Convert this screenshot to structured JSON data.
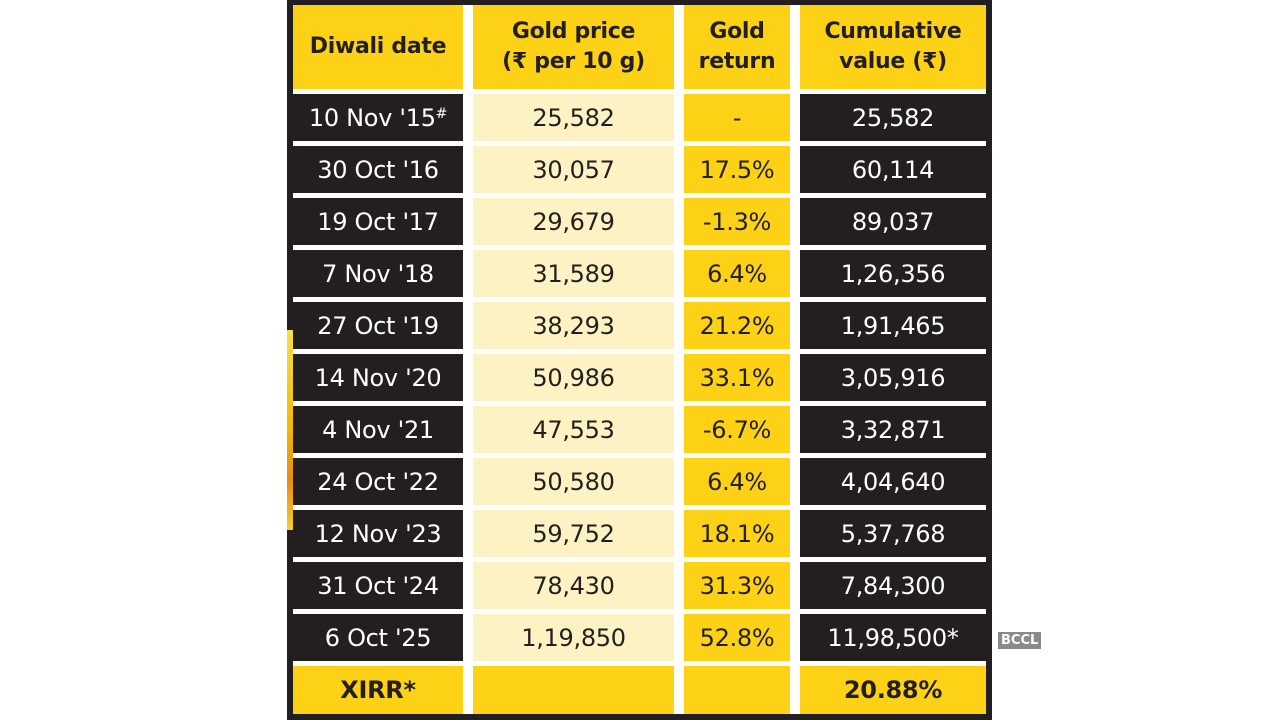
{
  "table": {
    "headers": [
      {
        "line1": "Diwali date",
        "line2": ""
      },
      {
        "line1": "Gold price",
        "line2": "(₹ per 10 g)"
      },
      {
        "line1": "Gold",
        "line2": "return"
      },
      {
        "line1": "Cumulative",
        "line2": "value (₹)"
      }
    ],
    "rows": [
      {
        "date": "10 Nov '15",
        "mark": "#",
        "price": "25,582",
        "return": "-",
        "cumulative": "25,582"
      },
      {
        "date": "30 Oct '16",
        "mark": "",
        "price": "30,057",
        "return": "17.5%",
        "cumulative": "60,114"
      },
      {
        "date": "19 Oct '17",
        "mark": "",
        "price": "29,679",
        "return": "-1.3%",
        "cumulative": "89,037"
      },
      {
        "date": "7 Nov '18",
        "mark": "",
        "price": "31,589",
        "return": "6.4%",
        "cumulative": "1,26,356"
      },
      {
        "date": "27 Oct '19",
        "mark": "",
        "price": "38,293",
        "return": "21.2%",
        "cumulative": "1,91,465"
      },
      {
        "date": "14 Nov '20",
        "mark": "",
        "price": "50,986",
        "return": "33.1%",
        "cumulative": "3,05,916"
      },
      {
        "date": "4 Nov '21",
        "mark": "",
        "price": "47,553",
        "return": "-6.7%",
        "cumulative": "3,32,871"
      },
      {
        "date": "24 Oct '22",
        "mark": "",
        "price": "50,580",
        "return": "6.4%",
        "cumulative": "4,04,640"
      },
      {
        "date": "12 Nov '23",
        "mark": "",
        "price": "59,752",
        "return": "18.1%",
        "cumulative": "5,37,768"
      },
      {
        "date": "31 Oct '24",
        "mark": "",
        "price": "78,430",
        "return": "31.3%",
        "cumulative": "7,84,300"
      },
      {
        "date": "6 Oct '25",
        "mark": "",
        "price": "1,19,850",
        "return": "52.8%",
        "cumulative": "11,98,500*"
      }
    ],
    "footer": {
      "label": "XIRR*",
      "price": "",
      "return": "",
      "value": "20.88%"
    }
  },
  "watermark": "BCCL",
  "colors": {
    "yellow": "#fdd116",
    "cream": "#fdf2c3",
    "dark": "#231f20"
  }
}
